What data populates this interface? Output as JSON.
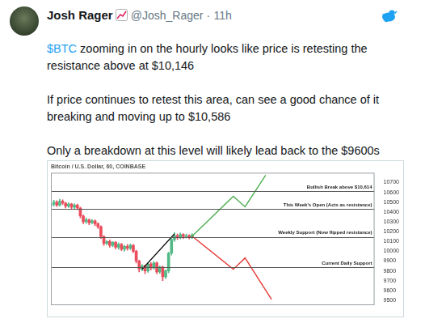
{
  "tweet": {
    "name": "Josh Rager",
    "handle": "@Josh_Rager",
    "separator": "·",
    "time": "11h",
    "paragraphs": [
      {
        "cashtag": "$BTC",
        "lines": [
          "zooming in on the hourly looks like price is retesting the",
          "resistance above at $10,146"
        ]
      },
      {
        "lines": [
          "If price continues to retest this area, can see a good chance of it",
          "breaking and moving up to $10,586"
        ]
      },
      {
        "lines": [
          "Only a breakdown at this level will likely lead back to the $9600s"
        ]
      }
    ]
  },
  "chart_data": {
    "type": "candlestick",
    "title": "Bitcoin / U.S. Dollar, 60, COINBASE",
    "x": [
      0,
      1,
      2,
      3,
      4,
      5,
      6,
      7,
      8,
      9,
      10,
      11,
      12,
      13,
      14,
      15,
      16,
      17,
      18,
      19,
      20,
      21,
      22,
      23,
      24,
      25,
      26,
      27,
      28,
      29,
      30,
      31,
      32,
      33,
      34,
      35,
      36,
      37,
      38,
      39,
      40,
      41,
      42,
      43,
      44,
      45,
      46,
      47,
      48
    ],
    "open": [
      10470,
      10480,
      10500,
      10470,
      10510,
      10490,
      10460,
      10480,
      10450,
      10470,
      10440,
      10360,
      10300,
      10320,
      10290,
      10310,
      10280,
      10250,
      10150,
      10080,
      10100,
      10060,
      10090,
      10040,
      10070,
      10020,
      10050,
      10030,
      10060,
      10000,
      9900,
      9820,
      9850,
      9800,
      9870,
      9830,
      9880,
      9790,
      9840,
      9740,
      9800,
      9980,
      10120,
      10160,
      10140,
      10170,
      10150,
      10160,
      10140
    ],
    "high": [
      10505,
      10520,
      10515,
      10530,
      10525,
      10500,
      10495,
      10490,
      10485,
      10480,
      10450,
      10370,
      10340,
      10330,
      10325,
      10320,
      10290,
      10260,
      10160,
      10110,
      10115,
      10100,
      10100,
      10085,
      10080,
      10060,
      10070,
      10075,
      10070,
      10010,
      9910,
      9865,
      9860,
      9880,
      9885,
      9895,
      9890,
      9850,
      9850,
      9810,
      9990,
      10130,
      10190,
      10175,
      10185,
      10180,
      10175,
      10170,
      10180
    ],
    "low": [
      10450,
      10460,
      10455,
      10460,
      10475,
      10440,
      10445,
      10430,
      10435,
      10425,
      10340,
      10280,
      10285,
      10270,
      10280,
      10260,
      10230,
      10130,
      10060,
      10065,
      10040,
      10045,
      10025,
      10020,
      10005,
      10000,
      10010,
      10015,
      9985,
      9880,
      9790,
      9800,
      9770,
      9785,
      9810,
      9815,
      9770,
      9775,
      9700,
      9720,
      9780,
      9960,
      10100,
      10120,
      10125,
      10130,
      10135,
      10125,
      10130
    ],
    "close": [
      10480,
      10500,
      10470,
      10510,
      10490,
      10460,
      10480,
      10450,
      10470,
      10440,
      10360,
      10300,
      10320,
      10290,
      10310,
      10280,
      10250,
      10150,
      10080,
      10100,
      10060,
      10090,
      10040,
      10070,
      10020,
      10050,
      10030,
      10060,
      10000,
      9900,
      9820,
      9850,
      9800,
      9870,
      9830,
      9880,
      9790,
      9840,
      9740,
      9800,
      9980,
      10120,
      10160,
      10140,
      10170,
      10150,
      10160,
      10140,
      10165
    ],
    "lines": [
      {
        "color": "#000000",
        "x": [
          31,
          42
        ],
        "values": [
          9816,
          10177
        ]
      },
      {
        "color": "#4caf50",
        "x": [
          48,
          62,
          66,
          73
        ],
        "values": [
          10154,
          10560,
          10453,
          10775
        ]
      },
      {
        "color": "#e53935",
        "x": [
          48,
          62,
          66,
          75
        ],
        "values": [
          10154,
          9816,
          9931,
          9509
        ]
      }
    ],
    "levels": [
      {
        "value": 10614,
        "label": "Bullish Break above $10,614"
      },
      {
        "value": 10430,
        "label": "This Week's Open (Acts as resistance)"
      },
      {
        "value": 10146,
        "label": "Weekly Support (Now flipped resistance)"
      },
      {
        "value": 9839,
        "label": "Current Daily Support"
      }
    ],
    "xlim": [
      0,
      110
    ],
    "ylim": [
      9450,
      10800
    ],
    "yticks": [
      9500,
      9600,
      9700,
      9800,
      9900,
      10000,
      10100,
      10200,
      10300,
      10400,
      10500,
      10600,
      10700
    ],
    "tick_labels": "y",
    "grid": false
  }
}
